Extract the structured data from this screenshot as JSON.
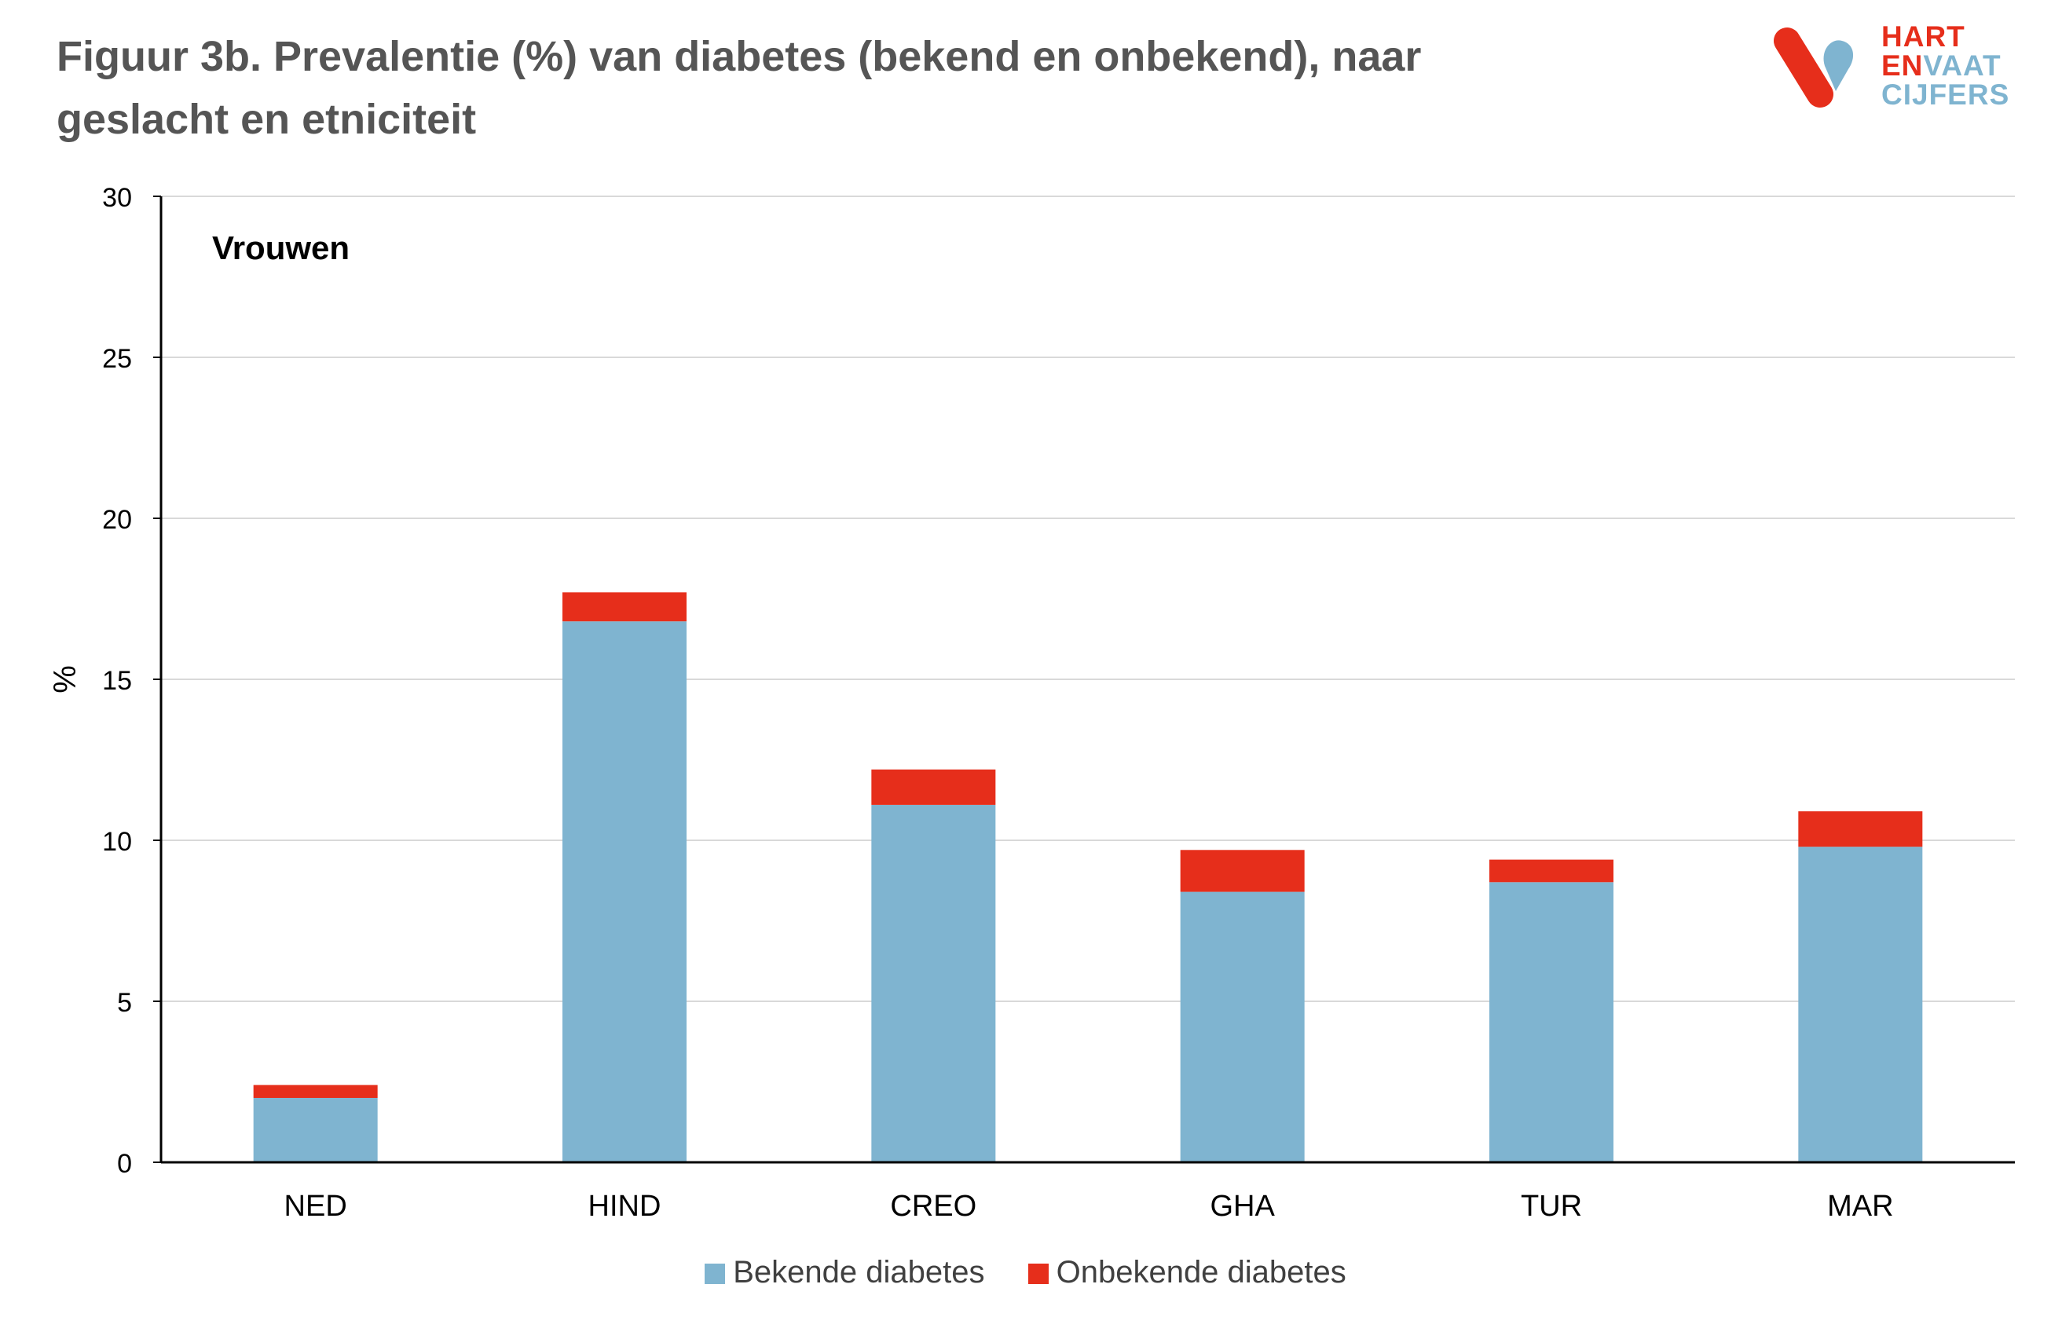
{
  "header": {
    "title_line1": "Figuur 3b. Prevalentie (%) van diabetes (bekend en onbekend), naar",
    "title_line2": "geslacht en etniciteit"
  },
  "logo": {
    "word1": "HART",
    "word2a": "EN",
    "word2b": "VAAT",
    "word3": "CIJFERS",
    "mark_icon": "hart-en-vaat-logo-icon"
  },
  "chart_data": {
    "type": "bar",
    "stacked": true,
    "panel_label": "Vrouwen",
    "ylabel": "%",
    "xlabel": "",
    "ylim": [
      0,
      30
    ],
    "yticks": [
      0,
      5,
      10,
      15,
      20,
      25,
      30
    ],
    "grid": true,
    "legend_position": "bottom",
    "categories": [
      "NED",
      "HIND",
      "CREO",
      "GHA",
      "TUR",
      "MAR"
    ],
    "series": [
      {
        "name": "Bekende diabetes",
        "color": "#7fb4d0",
        "values": [
          2.0,
          16.8,
          11.1,
          8.4,
          8.7,
          9.8
        ]
      },
      {
        "name": "Onbekende diabetes",
        "color": "#e62e1b",
        "values": [
          0.4,
          0.9,
          1.1,
          1.3,
          0.7,
          1.1
        ]
      }
    ]
  }
}
